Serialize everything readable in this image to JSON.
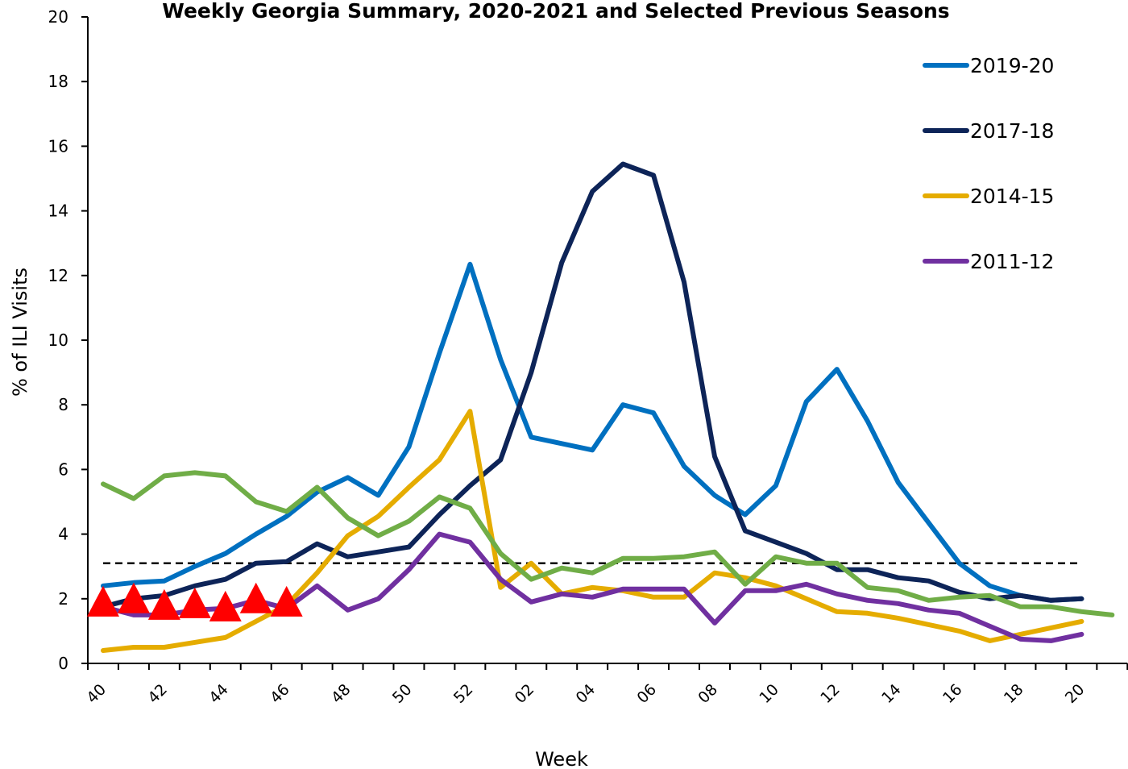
{
  "chart_data": {
    "type": "line",
    "title": "Weekly Georgia Summary, 2020-2021 and Selected Previous Seasons",
    "xlabel": "Week",
    "ylabel": "% of ILI Visits",
    "ylim": [
      0,
      20
    ],
    "yticks": [
      0,
      2,
      4,
      6,
      8,
      10,
      12,
      14,
      16,
      18,
      20
    ],
    "categories": [
      "40",
      "41",
      "42",
      "43",
      "44",
      "45",
      "46",
      "47",
      "48",
      "49",
      "50",
      "51",
      "52",
      "01",
      "02",
      "03",
      "04",
      "05",
      "06",
      "07",
      "08",
      "09",
      "10",
      "11",
      "12",
      "13",
      "14",
      "15",
      "16",
      "17",
      "18",
      "19",
      "20",
      "21"
    ],
    "x_tick_labels": [
      "40",
      "42",
      "44",
      "46",
      "48",
      "50",
      "52",
      "02",
      "04",
      "06",
      "08",
      "10",
      "12",
      "14",
      "16",
      "18",
      "20"
    ],
    "legend_position": "top-right",
    "baseline": {
      "value": 3.1,
      "style": "dashed",
      "color": "#000000"
    },
    "series": [
      {
        "name": "2019-20",
        "color": "#0070C0",
        "in_legend": true,
        "values": [
          2.4,
          2.5,
          2.55,
          3.0,
          3.4,
          4.0,
          4.55,
          5.3,
          5.75,
          5.2,
          6.7,
          9.6,
          12.35,
          9.4,
          7.0,
          6.8,
          6.6,
          8.0,
          7.75,
          6.1,
          5.2,
          4.6,
          5.5,
          8.1,
          9.1,
          7.5,
          5.6,
          4.35,
          3.1,
          2.4,
          2.1,
          1.95,
          2.0,
          null
        ]
      },
      {
        "name": "2017-18",
        "color": "#0D2458",
        "in_legend": true,
        "values": [
          1.75,
          2.0,
          2.1,
          2.4,
          2.6,
          3.1,
          3.15,
          3.7,
          3.3,
          3.45,
          3.6,
          4.6,
          5.5,
          6.3,
          9.0,
          12.4,
          14.6,
          15.45,
          15.1,
          11.8,
          6.4,
          4.1,
          3.75,
          3.4,
          2.9,
          2.9,
          2.65,
          2.55,
          2.2,
          2.0,
          2.1,
          1.95,
          2.0,
          null
        ]
      },
      {
        "name": "2014-15",
        "color": "#E5AC00",
        "in_legend": true,
        "values": [
          0.4,
          0.5,
          0.5,
          0.65,
          0.8,
          1.3,
          1.8,
          2.8,
          3.95,
          4.55,
          5.45,
          6.3,
          7.8,
          2.35,
          3.1,
          2.15,
          2.35,
          2.25,
          2.05,
          2.05,
          2.8,
          2.65,
          2.4,
          2.0,
          1.6,
          1.55,
          1.4,
          1.2,
          1.0,
          0.7,
          0.9,
          1.1,
          1.3,
          null
        ]
      },
      {
        "name": "2011-12",
        "color": "#7030A0",
        "in_legend": true,
        "values": [
          1.75,
          1.5,
          1.5,
          1.65,
          1.7,
          1.95,
          1.7,
          2.4,
          1.65,
          2.0,
          2.9,
          4.0,
          3.75,
          2.6,
          1.9,
          2.15,
          2.05,
          2.3,
          2.3,
          2.3,
          1.25,
          2.25,
          2.25,
          2.45,
          2.15,
          1.95,
          1.85,
          1.65,
          1.55,
          1.15,
          0.75,
          0.7,
          0.9,
          null
        ]
      },
      {
        "name": "",
        "color": "#70AD47",
        "in_legend": false,
        "values": [
          5.55,
          5.1,
          5.8,
          5.9,
          5.8,
          5.0,
          4.7,
          5.45,
          4.5,
          3.95,
          4.4,
          5.15,
          4.8,
          3.4,
          2.6,
          2.95,
          2.8,
          3.25,
          3.25,
          3.3,
          3.45,
          2.45,
          3.3,
          3.1,
          3.1,
          2.35,
          2.25,
          1.95,
          2.05,
          2.1,
          1.75,
          1.75,
          1.6,
          1.5
        ]
      },
      {
        "name": "",
        "color": "#FF0000",
        "in_legend": false,
        "marker": "triangle",
        "values": [
          1.85,
          1.95,
          1.75,
          1.8,
          1.7,
          1.95,
          1.85,
          null,
          null,
          null,
          null,
          null,
          null,
          null,
          null,
          null,
          null,
          null,
          null,
          null,
          null,
          null,
          null,
          null,
          null,
          null,
          null,
          null,
          null,
          null,
          null,
          null,
          null,
          null
        ]
      }
    ]
  }
}
